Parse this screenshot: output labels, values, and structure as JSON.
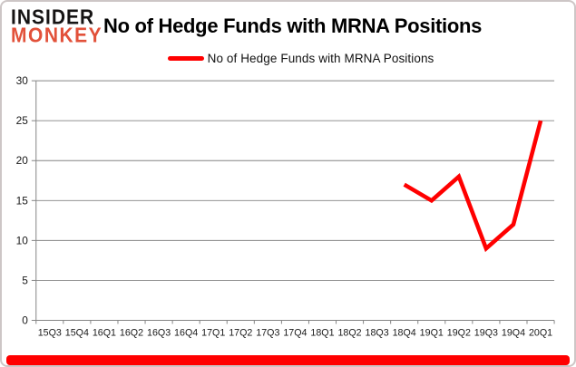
{
  "logo": {
    "line1": "INSIDER",
    "line2": "MONKEY"
  },
  "header": {
    "title": "No of Hedge Funds with MRNA Positions"
  },
  "legend": {
    "label": "No of Hedge Funds with MRNA Positions"
  },
  "colors": {
    "accent_red": "#ff0000",
    "logo_red": "#e2513a",
    "grid_gray": "#848484",
    "text_dark": "#1a1a1a"
  },
  "chart_data": {
    "type": "line",
    "title": "No of Hedge Funds with MRNA Positions",
    "categories": [
      "15Q3",
      "15Q4",
      "16Q1",
      "16Q2",
      "16Q3",
      "16Q4",
      "17Q1",
      "17Q2",
      "17Q3",
      "17Q4",
      "18Q1",
      "18Q2",
      "18Q3",
      "18Q4",
      "19Q1",
      "19Q2",
      "19Q3",
      "19Q4",
      "20Q1"
    ],
    "series": [
      {
        "name": "No of Hedge Funds with MRNA Positions",
        "color": "#ff0000",
        "points": [
          {
            "x": "18Q4",
            "y": 17
          },
          {
            "x": "19Q1",
            "y": 15
          },
          {
            "x": "19Q2",
            "y": 18
          },
          {
            "x": "19Q3",
            "y": 9
          },
          {
            "x": "19Q4",
            "y": 12
          },
          {
            "x": "20Q1",
            "y": 25
          }
        ]
      }
    ],
    "ylim": [
      0,
      30
    ],
    "ytick_step": 5,
    "grid": true,
    "legend_position": "top"
  }
}
